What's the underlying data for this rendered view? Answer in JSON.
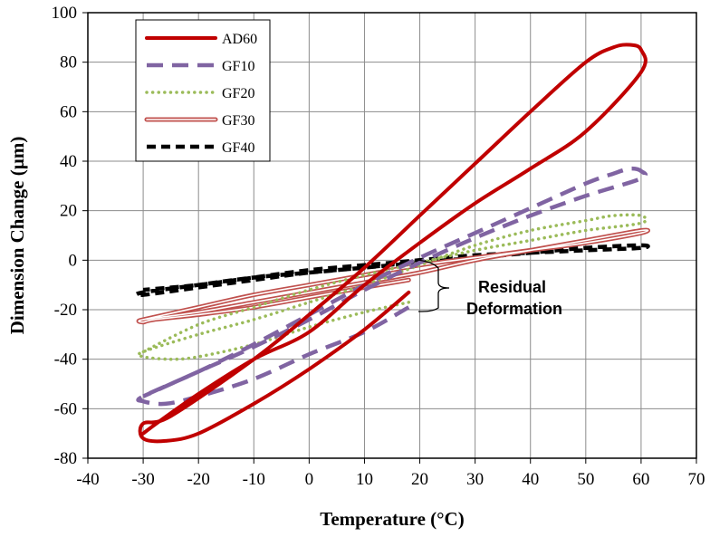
{
  "chart_data": {
    "type": "line",
    "title": "",
    "xlabel": "Temperature (°C)",
    "ylabel": "Dimension Change (µm)",
    "xlim": [
      -40,
      70
    ],
    "ylim": [
      -80,
      100
    ],
    "xticks": [
      -40,
      -30,
      -20,
      -10,
      0,
      10,
      20,
      30,
      40,
      50,
      60,
      70
    ],
    "yticks": [
      -80,
      -60,
      -40,
      -20,
      0,
      20,
      40,
      60,
      80,
      100
    ],
    "grid": true,
    "legend": "top-left",
    "annotation": {
      "lines": [
        "Residual",
        "Deformation"
      ]
    },
    "series": [
      {
        "name": "AD60",
        "color": "#c00000",
        "style": "solid",
        "x": [
          18,
          10,
          0,
          -10,
          -20,
          -26,
          -30,
          -30,
          -25,
          -10,
          0,
          10,
          20,
          30,
          40,
          50,
          55,
          58,
          60,
          60,
          50,
          40,
          30,
          20,
          10,
          0,
          -10,
          -20,
          -27,
          -30
        ],
        "y": [
          -13,
          -28,
          -44,
          -58,
          -70,
          -73,
          -72,
          -66,
          -63,
          -40,
          -22,
          -3,
          18,
          39,
          60,
          80,
          86,
          87,
          85,
          76,
          52,
          37,
          23,
          7,
          -10,
          -29,
          -40,
          -54,
          -65,
          -70
        ]
      },
      {
        "name": "GF10",
        "color": "#8064a2",
        "style": "dashed",
        "x": [
          18,
          10,
          0,
          -10,
          -20,
          -26,
          -30,
          -30,
          -20,
          -10,
          0,
          10,
          20,
          30,
          40,
          50,
          55,
          58,
          60,
          60,
          50,
          40,
          30,
          20,
          10,
          0,
          -10,
          -20,
          -30
        ],
        "y": [
          -19,
          -29,
          -38,
          -48,
          -55,
          -58,
          -57,
          -55,
          -45,
          -34,
          -22,
          -10,
          1,
          11,
          21,
          31,
          35,
          37,
          36,
          33,
          26,
          18,
          9,
          -1,
          -12,
          -24,
          -35,
          -45,
          -55
        ]
      },
      {
        "name": "GF20",
        "color": "#9bbb59",
        "style": "dotted",
        "x": [
          18,
          10,
          0,
          -10,
          -20,
          -25,
          -30,
          -30,
          -20,
          -10,
          0,
          10,
          20,
          30,
          40,
          50,
          55,
          60,
          60,
          50,
          40,
          30,
          20,
          10,
          0,
          -10,
          -20,
          -30
        ],
        "y": [
          -17,
          -21,
          -27,
          -34,
          -39,
          -40,
          -39,
          -37,
          -30,
          -24,
          -17,
          -10,
          -2,
          6,
          12,
          16,
          18,
          18,
          15,
          12,
          8,
          4,
          -1,
          -6,
          -12,
          -19,
          -26,
          -37
        ]
      },
      {
        "name": "GF30",
        "color": "#c0504d",
        "style": "double",
        "x": [
          18,
          10,
          0,
          -10,
          -20,
          -28,
          -30,
          -30,
          -20,
          -10,
          0,
          10,
          20,
          30,
          40,
          50,
          60,
          60,
          50,
          40,
          30,
          20,
          10,
          0,
          -10,
          -20,
          -30
        ],
        "y": [
          -8,
          -11,
          -15,
          -19,
          -22,
          -24,
          -25,
          -24,
          -21,
          -17,
          -13,
          -9,
          -5,
          0,
          4,
          8,
          12,
          11,
          7,
          4,
          1,
          -2,
          -6,
          -10,
          -14,
          -19,
          -24
        ]
      },
      {
        "name": "GF40",
        "color": "#000000",
        "style": "dashed-bold",
        "x": [
          18,
          10,
          0,
          -10,
          -20,
          -30,
          -30,
          -20,
          -10,
          0,
          10,
          20,
          30,
          40,
          50,
          60,
          60,
          50,
          40,
          30,
          20,
          10,
          0,
          -10,
          -20,
          -30
        ],
        "y": [
          -1,
          -3,
          -5,
          -8,
          -11,
          -14,
          -13,
          -10,
          -7,
          -5,
          -3,
          -1,
          1,
          3,
          5,
          6,
          5,
          4,
          3,
          2,
          0,
          -2,
          -4,
          -7,
          -10,
          -12
        ]
      }
    ]
  }
}
